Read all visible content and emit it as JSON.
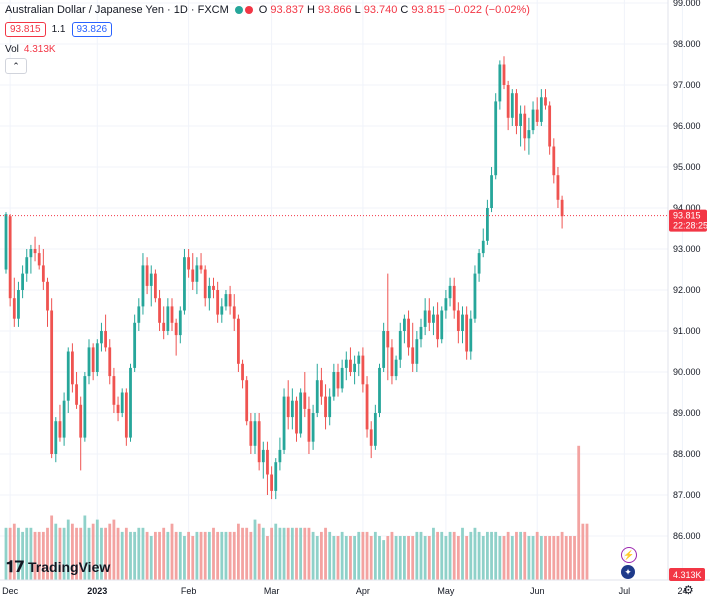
{
  "header": {
    "title": "Australian Dollar / Japanese Yen · 1D · FXCM",
    "ohlc": [
      {
        "label": "O",
        "value": "93.837"
      },
      {
        "label": "H",
        "value": "93.866"
      },
      {
        "label": "L",
        "value": "93.740"
      },
      {
        "label": "C",
        "value": "93.815"
      }
    ],
    "change": "−0.022 (−0.02%)"
  },
  "price_row": {
    "bid": "93.815",
    "spread": "1.1",
    "ask": "93.826"
  },
  "volume_row": {
    "label": "Vol",
    "value": "4.313K"
  },
  "current_price_label": {
    "price": "93.815",
    "countdown": "22:28:25"
  },
  "volume_axis_label": "4.313K",
  "logo": {
    "text": "TradingView"
  },
  "colors": {
    "up": "#26a69a",
    "down": "#ef5350",
    "up_vol": "#8fd1c9",
    "down_vol": "#f3a3a1",
    "accent": "#2962ff",
    "price_line": "#f23645"
  },
  "icons": {
    "lightning": "lightning-icon",
    "flag": "flag-icon",
    "settings": "settings-icon"
  },
  "chart_data": {
    "type": "candlestick",
    "symbol": "AUDJPY",
    "timeframe": "1D",
    "y_ticks": [
      "86.000",
      "87.000",
      "88.000",
      "89.000",
      "90.000",
      "91.000",
      "92.000",
      "93.000",
      "94.000",
      "95.000",
      "96.000",
      "97.000",
      "98.000",
      "99.000"
    ],
    "ylim": [
      85.0,
      99.0
    ],
    "x_labels": [
      {
        "label": "Dec",
        "index": 1
      },
      {
        "label": "2023",
        "index": 22
      },
      {
        "label": "Feb",
        "index": 44
      },
      {
        "label": "Mar",
        "index": 64
      },
      {
        "label": "Apr",
        "index": 86
      },
      {
        "label": "May",
        "index": 106
      },
      {
        "label": "Jun",
        "index": 128
      },
      {
        "label": "Jul",
        "index": 149
      },
      {
        "label": "24",
        "index": 163
      }
    ],
    "candles": [
      {
        "o": 92.5,
        "h": 93.9,
        "l": 92.4,
        "c": 93.85
      },
      {
        "o": 93.8,
        "h": 93.85,
        "l": 91.6,
        "c": 91.8
      },
      {
        "o": 91.8,
        "h": 92.3,
        "l": 91.1,
        "c": 91.3
      },
      {
        "o": 91.3,
        "h": 92.2,
        "l": 91.1,
        "c": 92.0
      },
      {
        "o": 92.0,
        "h": 92.6,
        "l": 91.8,
        "c": 92.4
      },
      {
        "o": 92.4,
        "h": 93.0,
        "l": 92.2,
        "c": 92.8
      },
      {
        "o": 92.8,
        "h": 93.1,
        "l": 92.4,
        "c": 93.0
      },
      {
        "o": 93.0,
        "h": 93.3,
        "l": 92.7,
        "c": 92.9
      },
      {
        "o": 92.9,
        "h": 93.1,
        "l": 92.5,
        "c": 92.6
      },
      {
        "o": 92.6,
        "h": 93.0,
        "l": 92.0,
        "c": 92.2
      },
      {
        "o": 92.2,
        "h": 92.3,
        "l": 91.1,
        "c": 91.5
      },
      {
        "o": 91.5,
        "h": 91.8,
        "l": 87.9,
        "c": 88.0
      },
      {
        "o": 88.0,
        "h": 88.9,
        "l": 87.8,
        "c": 88.8
      },
      {
        "o": 88.8,
        "h": 89.2,
        "l": 88.3,
        "c": 88.4
      },
      {
        "o": 88.4,
        "h": 89.5,
        "l": 88.2,
        "c": 89.3
      },
      {
        "o": 89.3,
        "h": 90.6,
        "l": 89.0,
        "c": 90.5
      },
      {
        "o": 90.5,
        "h": 90.7,
        "l": 89.5,
        "c": 89.7
      },
      {
        "o": 89.7,
        "h": 90.0,
        "l": 89.1,
        "c": 89.2
      },
      {
        "o": 89.2,
        "h": 89.4,
        "l": 87.6,
        "c": 88.4
      },
      {
        "o": 88.4,
        "h": 90.0,
        "l": 88.3,
        "c": 89.9
      },
      {
        "o": 89.9,
        "h": 90.8,
        "l": 89.7,
        "c": 90.6
      },
      {
        "o": 90.6,
        "h": 90.7,
        "l": 89.8,
        "c": 90.0
      },
      {
        "o": 90.0,
        "h": 90.8,
        "l": 89.9,
        "c": 90.7
      },
      {
        "o": 90.7,
        "h": 91.2,
        "l": 90.5,
        "c": 91.0
      },
      {
        "o": 91.0,
        "h": 91.4,
        "l": 90.5,
        "c": 90.6
      },
      {
        "o": 90.6,
        "h": 90.8,
        "l": 89.7,
        "c": 89.9
      },
      {
        "o": 89.9,
        "h": 90.1,
        "l": 89.0,
        "c": 89.2
      },
      {
        "o": 89.2,
        "h": 89.4,
        "l": 88.8,
        "c": 89.0
      },
      {
        "o": 89.0,
        "h": 89.6,
        "l": 88.9,
        "c": 89.5
      },
      {
        "o": 89.5,
        "h": 89.6,
        "l": 88.2,
        "c": 88.4
      },
      {
        "o": 88.4,
        "h": 90.2,
        "l": 88.3,
        "c": 90.1
      },
      {
        "o": 90.1,
        "h": 91.4,
        "l": 90.0,
        "c": 91.2
      },
      {
        "o": 91.2,
        "h": 91.8,
        "l": 91.0,
        "c": 91.6
      },
      {
        "o": 91.6,
        "h": 92.9,
        "l": 91.4,
        "c": 92.6
      },
      {
        "o": 92.6,
        "h": 92.8,
        "l": 91.9,
        "c": 92.1
      },
      {
        "o": 92.1,
        "h": 92.6,
        "l": 91.6,
        "c": 92.4
      },
      {
        "o": 92.4,
        "h": 92.5,
        "l": 91.7,
        "c": 91.8
      },
      {
        "o": 91.8,
        "h": 92.0,
        "l": 91.0,
        "c": 91.2
      },
      {
        "o": 91.2,
        "h": 91.6,
        "l": 90.8,
        "c": 91.0
      },
      {
        "o": 91.0,
        "h": 91.8,
        "l": 90.9,
        "c": 91.6
      },
      {
        "o": 91.6,
        "h": 91.8,
        "l": 91.0,
        "c": 91.2
      },
      {
        "o": 91.2,
        "h": 91.3,
        "l": 90.4,
        "c": 90.9
      },
      {
        "o": 90.9,
        "h": 91.6,
        "l": 90.7,
        "c": 91.5
      },
      {
        "o": 91.5,
        "h": 93.0,
        "l": 91.4,
        "c": 92.8
      },
      {
        "o": 92.8,
        "h": 93.0,
        "l": 92.3,
        "c": 92.5
      },
      {
        "o": 92.5,
        "h": 92.9,
        "l": 92.0,
        "c": 92.2
      },
      {
        "o": 92.2,
        "h": 92.8,
        "l": 91.9,
        "c": 92.6
      },
      {
        "o": 92.6,
        "h": 92.9,
        "l": 92.4,
        "c": 92.5
      },
      {
        "o": 92.5,
        "h": 92.6,
        "l": 91.6,
        "c": 91.8
      },
      {
        "o": 91.8,
        "h": 92.3,
        "l": 91.5,
        "c": 92.1
      },
      {
        "o": 92.1,
        "h": 92.3,
        "l": 91.8,
        "c": 92.0
      },
      {
        "o": 92.0,
        "h": 92.2,
        "l": 91.2,
        "c": 91.4
      },
      {
        "o": 91.4,
        "h": 91.8,
        "l": 91.2,
        "c": 91.6
      },
      {
        "o": 91.6,
        "h": 92.0,
        "l": 91.5,
        "c": 91.9
      },
      {
        "o": 91.9,
        "h": 92.1,
        "l": 91.4,
        "c": 91.6
      },
      {
        "o": 91.6,
        "h": 91.9,
        "l": 91.0,
        "c": 91.3
      },
      {
        "o": 91.3,
        "h": 91.4,
        "l": 90.0,
        "c": 90.2
      },
      {
        "o": 90.2,
        "h": 90.3,
        "l": 89.6,
        "c": 89.8
      },
      {
        "o": 89.8,
        "h": 89.9,
        "l": 88.7,
        "c": 88.8
      },
      {
        "o": 88.8,
        "h": 89.0,
        "l": 88.0,
        "c": 88.2
      },
      {
        "o": 88.2,
        "h": 89.0,
        "l": 88.0,
        "c": 88.8
      },
      {
        "o": 88.8,
        "h": 89.0,
        "l": 87.6,
        "c": 87.8
      },
      {
        "o": 87.8,
        "h": 88.3,
        "l": 87.4,
        "c": 88.1
      },
      {
        "o": 88.1,
        "h": 88.3,
        "l": 87.0,
        "c": 87.5
      },
      {
        "o": 87.5,
        "h": 87.7,
        "l": 86.9,
        "c": 87.1
      },
      {
        "o": 87.1,
        "h": 87.9,
        "l": 86.9,
        "c": 87.8
      },
      {
        "o": 87.8,
        "h": 88.4,
        "l": 87.6,
        "c": 88.1
      },
      {
        "o": 88.1,
        "h": 89.6,
        "l": 88.0,
        "c": 89.4
      },
      {
        "o": 89.4,
        "h": 89.8,
        "l": 88.6,
        "c": 88.9
      },
      {
        "o": 88.9,
        "h": 89.6,
        "l": 88.6,
        "c": 89.3
      },
      {
        "o": 89.3,
        "h": 89.4,
        "l": 88.3,
        "c": 88.5
      },
      {
        "o": 88.5,
        "h": 89.6,
        "l": 88.4,
        "c": 89.5
      },
      {
        "o": 89.5,
        "h": 90.0,
        "l": 88.9,
        "c": 89.1
      },
      {
        "o": 89.1,
        "h": 89.4,
        "l": 88.0,
        "c": 88.3
      },
      {
        "o": 88.3,
        "h": 89.2,
        "l": 88.1,
        "c": 89.0
      },
      {
        "o": 89.0,
        "h": 90.2,
        "l": 88.9,
        "c": 89.8
      },
      {
        "o": 89.8,
        "h": 90.1,
        "l": 89.2,
        "c": 89.4
      },
      {
        "o": 89.4,
        "h": 89.7,
        "l": 88.6,
        "c": 88.9
      },
      {
        "o": 88.9,
        "h": 89.6,
        "l": 88.7,
        "c": 89.4
      },
      {
        "o": 89.4,
        "h": 90.2,
        "l": 89.3,
        "c": 90.0
      },
      {
        "o": 90.0,
        "h": 90.2,
        "l": 89.4,
        "c": 89.6
      },
      {
        "o": 89.6,
        "h": 90.3,
        "l": 89.5,
        "c": 90.1
      },
      {
        "o": 90.1,
        "h": 90.5,
        "l": 89.8,
        "c": 90.3
      },
      {
        "o": 90.3,
        "h": 90.6,
        "l": 89.9,
        "c": 90.0
      },
      {
        "o": 90.0,
        "h": 90.4,
        "l": 89.7,
        "c": 90.2
      },
      {
        "o": 90.2,
        "h": 90.5,
        "l": 89.9,
        "c": 90.4
      },
      {
        "o": 90.4,
        "h": 90.6,
        "l": 89.5,
        "c": 89.7
      },
      {
        "o": 89.7,
        "h": 89.9,
        "l": 88.4,
        "c": 88.6
      },
      {
        "o": 88.6,
        "h": 88.8,
        "l": 87.9,
        "c": 88.2
      },
      {
        "o": 88.2,
        "h": 89.2,
        "l": 88.1,
        "c": 89.0
      },
      {
        "o": 89.0,
        "h": 90.2,
        "l": 88.9,
        "c": 90.1
      },
      {
        "o": 90.1,
        "h": 91.2,
        "l": 90.0,
        "c": 91.0
      },
      {
        "o": 91.0,
        "h": 92.4,
        "l": 89.8,
        "c": 90.6
      },
      {
        "o": 90.6,
        "h": 90.8,
        "l": 89.7,
        "c": 89.9
      },
      {
        "o": 89.9,
        "h": 90.4,
        "l": 89.8,
        "c": 90.3
      },
      {
        "o": 90.3,
        "h": 91.2,
        "l": 90.1,
        "c": 91.0
      },
      {
        "o": 91.0,
        "h": 91.4,
        "l": 90.7,
        "c": 91.3
      },
      {
        "o": 91.3,
        "h": 91.5,
        "l": 90.4,
        "c": 90.6
      },
      {
        "o": 90.6,
        "h": 91.2,
        "l": 90.0,
        "c": 90.2
      },
      {
        "o": 90.2,
        "h": 91.0,
        "l": 90.0,
        "c": 90.8
      },
      {
        "o": 90.8,
        "h": 91.3,
        "l": 90.6,
        "c": 91.1
      },
      {
        "o": 91.1,
        "h": 91.8,
        "l": 90.9,
        "c": 91.5
      },
      {
        "o": 91.5,
        "h": 91.8,
        "l": 91.0,
        "c": 91.2
      },
      {
        "o": 91.2,
        "h": 91.6,
        "l": 90.9,
        "c": 91.4
      },
      {
        "o": 91.4,
        "h": 91.7,
        "l": 90.6,
        "c": 90.8
      },
      {
        "o": 90.8,
        "h": 91.6,
        "l": 90.7,
        "c": 91.5
      },
      {
        "o": 91.5,
        "h": 92.0,
        "l": 91.3,
        "c": 91.8
      },
      {
        "o": 91.8,
        "h": 92.3,
        "l": 91.6,
        "c": 92.1
      },
      {
        "o": 92.1,
        "h": 92.3,
        "l": 91.3,
        "c": 91.5
      },
      {
        "o": 91.5,
        "h": 91.7,
        "l": 90.7,
        "c": 91.0
      },
      {
        "o": 91.0,
        "h": 91.6,
        "l": 90.7,
        "c": 91.4
      },
      {
        "o": 91.4,
        "h": 91.6,
        "l": 90.3,
        "c": 90.5
      },
      {
        "o": 90.5,
        "h": 91.5,
        "l": 90.3,
        "c": 91.3
      },
      {
        "o": 91.3,
        "h": 92.6,
        "l": 91.2,
        "c": 92.4
      },
      {
        "o": 92.4,
        "h": 93.0,
        "l": 92.2,
        "c": 92.9
      },
      {
        "o": 92.9,
        "h": 93.5,
        "l": 92.8,
        "c": 93.2
      },
      {
        "o": 93.2,
        "h": 94.2,
        "l": 93.1,
        "c": 94.0
      },
      {
        "o": 94.0,
        "h": 95.0,
        "l": 93.9,
        "c": 94.8
      },
      {
        "o": 94.8,
        "h": 96.8,
        "l": 94.7,
        "c": 96.6
      },
      {
        "o": 96.6,
        "h": 97.6,
        "l": 96.4,
        "c": 97.5
      },
      {
        "o": 97.5,
        "h": 97.7,
        "l": 96.9,
        "c": 97.0
      },
      {
        "o": 97.0,
        "h": 97.1,
        "l": 95.9,
        "c": 96.2
      },
      {
        "o": 96.2,
        "h": 96.9,
        "l": 96.0,
        "c": 96.8
      },
      {
        "o": 96.8,
        "h": 96.9,
        "l": 95.8,
        "c": 96.0
      },
      {
        "o": 96.0,
        "h": 96.5,
        "l": 95.5,
        "c": 96.3
      },
      {
        "o": 96.3,
        "h": 96.5,
        "l": 95.4,
        "c": 95.7
      },
      {
        "o": 95.7,
        "h": 96.2,
        "l": 95.3,
        "c": 95.9
      },
      {
        "o": 95.9,
        "h": 96.6,
        "l": 95.8,
        "c": 96.4
      },
      {
        "o": 96.4,
        "h": 96.7,
        "l": 96.0,
        "c": 96.1
      },
      {
        "o": 96.1,
        "h": 96.9,
        "l": 96.0,
        "c": 96.7
      },
      {
        "o": 96.7,
        "h": 96.9,
        "l": 96.4,
        "c": 96.5
      },
      {
        "o": 96.5,
        "h": 96.6,
        "l": 95.3,
        "c": 95.5
      },
      {
        "o": 95.5,
        "h": 95.7,
        "l": 94.6,
        "c": 94.8
      },
      {
        "o": 94.8,
        "h": 95.0,
        "l": 94.0,
        "c": 94.2
      },
      {
        "o": 94.2,
        "h": 94.3,
        "l": 93.5,
        "c": 93.8
      }
    ],
    "volumes": [
      86.2,
      86.2,
      86.3,
      86.2,
      86.1,
      86.2,
      86.2,
      86.1,
      86.1,
      86.1,
      86.2,
      86.5,
      86.3,
      86.2,
      86.2,
      86.4,
      86.3,
      86.2,
      86.2,
      86.5,
      86.2,
      86.3,
      86.4,
      86.2,
      86.2,
      86.3,
      86.4,
      86.2,
      86.1,
      86.2,
      86.1,
      86.1,
      86.2,
      86.2,
      86.1,
      86.0,
      86.1,
      86.1,
      86.2,
      86.1,
      86.3,
      86.1,
      86.1,
      86.0,
      86.1,
      86.0,
      86.1,
      86.1,
      86.1,
      86.1,
      86.2,
      86.1,
      86.1,
      86.1,
      86.1,
      86.1,
      86.3,
      86.2,
      86.2,
      86.1,
      86.4,
      86.3,
      86.2,
      86.0,
      86.2,
      86.3,
      86.2,
      86.2,
      86.2,
      86.2,
      86.2,
      86.2,
      86.2,
      86.2,
      86.1,
      86.0,
      86.1,
      86.2,
      86.1,
      86.0,
      86.0,
      86.1,
      86.0,
      86.0,
      86.0,
      86.1,
      86.1,
      86.1,
      86.0,
      86.1,
      86.0,
      85.9,
      86.0,
      86.1,
      86.0,
      86.0,
      86.0,
      86.0,
      86.0,
      86.1,
      86.1,
      86.0,
      86.0,
      86.2,
      86.1,
      86.1,
      86.0,
      86.1,
      86.1,
      86.0,
      86.2,
      86.0,
      86.1,
      86.2,
      86.1,
      86.0,
      86.1,
      86.1,
      86.1,
      86.0,
      86.0,
      86.1,
      86.0,
      86.1,
      86.1,
      86.1,
      86.0,
      86.0,
      86.1,
      86.0,
      86.0,
      86.0,
      86.0,
      86.0,
      86.1,
      86.0,
      86.0,
      86.0,
      88.2,
      86.3,
      86.3
    ]
  }
}
